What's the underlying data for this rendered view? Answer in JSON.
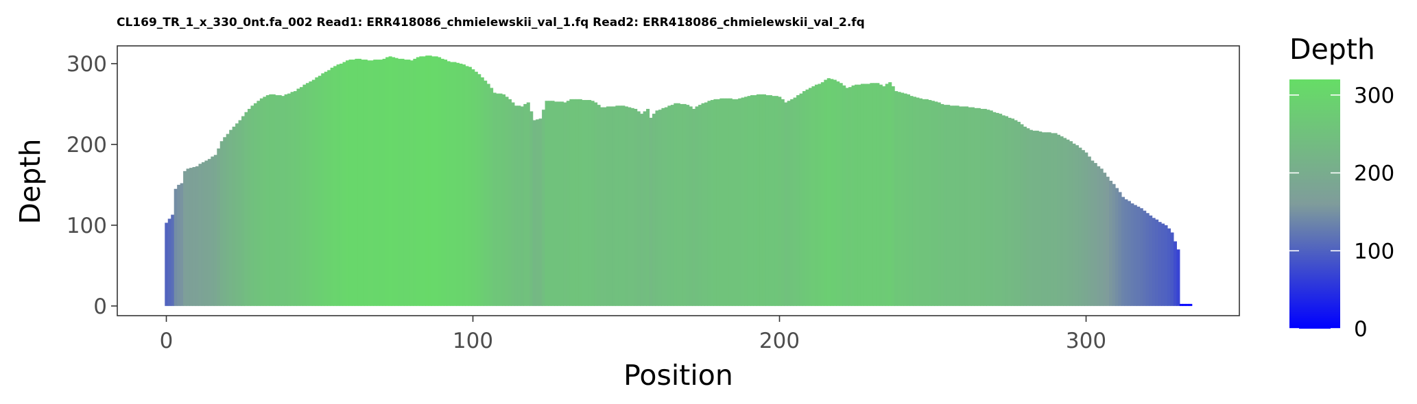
{
  "chart_data": {
    "type": "bar",
    "title": "CL169_TR_1_x_330_0nt.fa_002 Read1: ERR418086_chmielewskii_val_1.fq Read2: ERR418086_chmielewskii_val_2.fq",
    "xlabel": "Position",
    "ylabel": "Depth",
    "xlim": [
      -16,
      350
    ],
    "ylim": [
      -12,
      322
    ],
    "x_ticks": [
      0,
      100,
      200,
      300
    ],
    "y_ticks": [
      0,
      100,
      200,
      300
    ],
    "grid": false,
    "legend": {
      "title": "Depth",
      "type": "colorbar",
      "position": "right",
      "range": [
        0,
        320
      ],
      "ticks": [
        0,
        100,
        200,
        300
      ],
      "colors": {
        "low": "#0000ff",
        "mid": "#7f9c9b",
        "high": "#66dd66"
      }
    },
    "profile": [
      [
        0,
        103
      ],
      [
        1,
        108
      ],
      [
        2,
        113
      ],
      [
        3,
        145
      ],
      [
        4,
        150
      ],
      [
        5,
        152
      ],
      [
        6,
        167
      ],
      [
        7,
        170
      ],
      [
        10,
        173
      ],
      [
        12,
        178
      ],
      [
        14,
        182
      ],
      [
        16,
        187
      ],
      [
        17,
        195
      ],
      [
        18,
        204
      ],
      [
        20,
        213
      ],
      [
        22,
        222
      ],
      [
        24,
        230
      ],
      [
        26,
        240
      ],
      [
        28,
        248
      ],
      [
        30,
        254
      ],
      [
        32,
        259
      ],
      [
        34,
        262
      ],
      [
        38,
        260
      ],
      [
        40,
        263
      ],
      [
        42,
        266
      ],
      [
        45,
        274
      ],
      [
        48,
        280
      ],
      [
        52,
        290
      ],
      [
        55,
        297
      ],
      [
        58,
        302
      ],
      [
        60,
        305
      ],
      [
        63,
        306
      ],
      [
        66,
        304
      ],
      [
        70,
        305
      ],
      [
        73,
        309
      ],
      [
        76,
        306
      ],
      [
        80,
        304
      ],
      [
        82,
        308
      ],
      [
        85,
        310
      ],
      [
        89,
        308
      ],
      [
        92,
        303
      ],
      [
        96,
        300
      ],
      [
        99,
        296
      ],
      [
        102,
        287
      ],
      [
        105,
        275
      ],
      [
        107,
        264
      ],
      [
        110,
        262
      ],
      [
        112,
        256
      ],
      [
        114,
        248
      ],
      [
        116,
        247
      ],
      [
        118,
        252
      ],
      [
        120,
        230
      ],
      [
        122,
        232
      ],
      [
        124,
        254
      ],
      [
        128,
        253
      ],
      [
        130,
        252
      ],
      [
        132,
        256
      ],
      [
        138,
        255
      ],
      [
        140,
        252
      ],
      [
        142,
        246
      ],
      [
        148,
        248
      ],
      [
        150,
        247
      ],
      [
        153,
        244
      ],
      [
        155,
        238
      ],
      [
        157,
        244
      ],
      [
        158,
        233
      ],
      [
        160,
        242
      ],
      [
        163,
        246
      ],
      [
        166,
        251
      ],
      [
        170,
        249
      ],
      [
        172,
        244
      ],
      [
        174,
        249
      ],
      [
        178,
        255
      ],
      [
        182,
        257
      ],
      [
        186,
        256
      ],
      [
        190,
        260
      ],
      [
        194,
        262
      ],
      [
        198,
        260
      ],
      [
        200,
        259
      ],
      [
        202,
        252
      ],
      [
        205,
        258
      ],
      [
        208,
        266
      ],
      [
        211,
        272
      ],
      [
        214,
        277
      ],
      [
        216,
        282
      ],
      [
        218,
        280
      ],
      [
        220,
        276
      ],
      [
        222,
        270
      ],
      [
        225,
        274
      ],
      [
        228,
        275
      ],
      [
        232,
        276
      ],
      [
        234,
        272
      ],
      [
        236,
        277
      ],
      [
        238,
        266
      ],
      [
        240,
        264
      ],
      [
        245,
        258
      ],
      [
        250,
        254
      ],
      [
        254,
        249
      ],
      [
        260,
        247
      ],
      [
        264,
        245
      ],
      [
        268,
        243
      ],
      [
        271,
        239
      ],
      [
        274,
        235
      ],
      [
        278,
        228
      ],
      [
        280,
        222
      ],
      [
        282,
        218
      ],
      [
        286,
        215
      ],
      [
        290,
        214
      ],
      [
        292,
        210
      ],
      [
        294,
        206
      ],
      [
        296,
        201
      ],
      [
        298,
        196
      ],
      [
        300,
        190
      ],
      [
        302,
        180
      ],
      [
        305,
        170
      ],
      [
        307,
        160
      ],
      [
        310,
        146
      ],
      [
        312,
        135
      ],
      [
        315,
        127
      ],
      [
        318,
        121
      ],
      [
        320,
        115
      ],
      [
        322,
        109
      ],
      [
        324,
        104
      ],
      [
        326,
        100
      ],
      [
        327,
        96
      ],
      [
        328,
        91
      ],
      [
        329,
        80
      ],
      [
        330,
        70
      ],
      [
        331,
        2
      ],
      [
        333,
        2
      ],
      [
        334,
        2
      ]
    ]
  }
}
